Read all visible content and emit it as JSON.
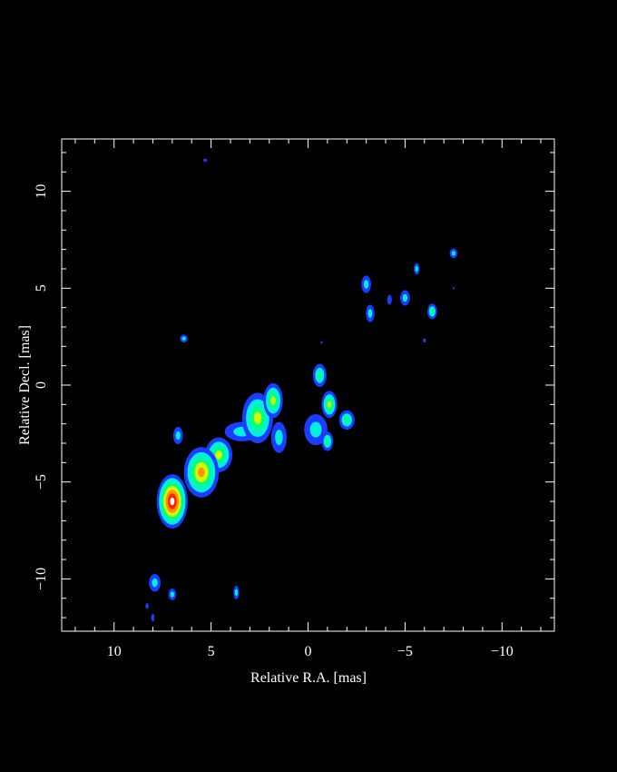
{
  "chart_data": {
    "type": "image",
    "xlabel": "Relative R.A. [mas]",
    "ylabel": "Relative Decl. [mas]",
    "xlim": [
      12.7,
      -12.7
    ],
    "ylim": [
      -12.7,
      12.7
    ],
    "xticks": [
      {
        "value": 10,
        "label": "10"
      },
      5,
      0,
      {
        "value": -5,
        "label": "−5"
      },
      {
        "value": -10,
        "label": "−10"
      }
    ],
    "yticks": [
      {
        "value": -10,
        "label": "−10"
      },
      {
        "value": -5,
        "label": "−5"
      },
      0,
      5,
      10
    ],
    "minor_ticks": true,
    "colormap": [
      "#1e3cff",
      "#00f0e0",
      "#00ff88",
      "#d0ff00",
      "#ff9000",
      "#ff2000",
      "#ffffff"
    ],
    "blobs": [
      {
        "x": 3.4,
        "y": -2.4,
        "a": 0.9,
        "b": 0.5,
        "level": 1
      },
      {
        "x": 1.5,
        "y": -2.7,
        "a": 0.4,
        "b": 0.8,
        "level": 1
      },
      {
        "x": -0.4,
        "y": -2.3,
        "a": 0.6,
        "b": 0.8,
        "level": 1
      },
      {
        "x": 4.6,
        "y": -3.6,
        "a": 0.7,
        "b": 0.9,
        "level": 3
      },
      {
        "x": 5.5,
        "y": -4.5,
        "a": 0.9,
        "b": 1.3,
        "level": 4
      },
      {
        "x": 7.0,
        "y": -6.0,
        "a": 0.8,
        "b": 1.4,
        "level": 6
      },
      {
        "x": 2.6,
        "y": -1.7,
        "a": 0.8,
        "b": 1.3,
        "level": 3
      },
      {
        "x": 1.8,
        "y": -0.8,
        "a": 0.5,
        "b": 0.9,
        "level": 3
      },
      {
        "x": -0.6,
        "y": 0.5,
        "a": 0.35,
        "b": 0.6,
        "level": 2
      },
      {
        "x": -1.1,
        "y": -1.0,
        "a": 0.4,
        "b": 0.7,
        "level": 3
      },
      {
        "x": -1.0,
        "y": -2.9,
        "a": 0.3,
        "b": 0.5,
        "level": 2
      },
      {
        "x": -2.0,
        "y": -1.8,
        "a": 0.4,
        "b": 0.5,
        "level": 2
      },
      {
        "x": 6.7,
        "y": -2.6,
        "a": 0.25,
        "b": 0.45,
        "level": 1
      },
      {
        "x": 6.4,
        "y": 2.4,
        "a": 0.2,
        "b": 0.2,
        "level": 1
      },
      {
        "x": -3.0,
        "y": 5.2,
        "a": 0.25,
        "b": 0.45,
        "level": 1
      },
      {
        "x": -3.2,
        "y": 3.7,
        "a": 0.22,
        "b": 0.45,
        "level": 1
      },
      {
        "x": -5.0,
        "y": 4.5,
        "a": 0.25,
        "b": 0.4,
        "level": 1
      },
      {
        "x": -6.4,
        "y": 3.8,
        "a": 0.25,
        "b": 0.4,
        "level": 2
      },
      {
        "x": -7.5,
        "y": 6.8,
        "a": 0.2,
        "b": 0.25,
        "level": 1
      },
      {
        "x": -5.6,
        "y": 6.0,
        "a": 0.15,
        "b": 0.3,
        "level": 1
      },
      {
        "x": -4.2,
        "y": 4.4,
        "a": 0.12,
        "b": 0.25,
        "level": 0
      },
      {
        "x": 7.9,
        "y": -10.2,
        "a": 0.3,
        "b": 0.45,
        "level": 1
      },
      {
        "x": 7.0,
        "y": -10.8,
        "a": 0.2,
        "b": 0.3,
        "level": 1
      },
      {
        "x": 3.7,
        "y": -10.7,
        "a": 0.15,
        "b": 0.35,
        "level": 1
      },
      {
        "x": 8.3,
        "y": -11.4,
        "a": 0.08,
        "b": 0.15,
        "level": 0
      },
      {
        "x": 8.0,
        "y": -12.0,
        "a": 0.08,
        "b": 0.2,
        "level": 0
      },
      {
        "x": 5.3,
        "y": 11.6,
        "a": 0.1,
        "b": 0.08,
        "level": 0
      },
      {
        "x": -6.0,
        "y": 2.3,
        "a": 0.08,
        "b": 0.1,
        "level": 0
      },
      {
        "x": -0.7,
        "y": 2.2,
        "a": 0.06,
        "b": 0.06,
        "level": 0
      },
      {
        "x": -7.5,
        "y": 5.0,
        "a": 0.05,
        "b": 0.06,
        "level": 0
      }
    ]
  }
}
